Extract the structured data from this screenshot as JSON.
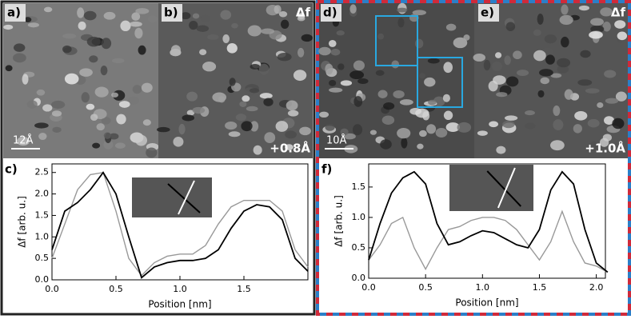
{
  "panels": {
    "a": "a)",
    "b": "b)",
    "b_channel": "Δf",
    "a_scale": "12Å",
    "b_height": "+0.8Å",
    "c": "c)",
    "d": "d)",
    "e": "e)",
    "e_channel": "Δf",
    "d_scale": "10Å",
    "e_height": "+1.0Å",
    "f": "f)"
  },
  "chart_data": [
    {
      "type": "line",
      "xlabel": "Position [nm]",
      "ylabel": "Δf [arb. u.]",
      "x": [
        0,
        0.1,
        0.2,
        0.3,
        0.4,
        0.5,
        0.6,
        0.7,
        0.8,
        0.9,
        1.0,
        1.1,
        1.2,
        1.3,
        1.4,
        1.5,
        1.6,
        1.7,
        1.8,
        1.9,
        2.0
      ],
      "series": [
        {
          "color": "#999999",
          "values": [
            0.5,
            1.3,
            2.1,
            2.45,
            2.5,
            1.6,
            0.5,
            0.1,
            0.4,
            0.55,
            0.6,
            0.6,
            0.8,
            1.3,
            1.7,
            1.85,
            1.85,
            1.85,
            1.6,
            0.7,
            0.3
          ]
        },
        {
          "color": "#000000",
          "values": [
            0.7,
            1.6,
            1.8,
            2.1,
            2.5,
            2.0,
            1.0,
            0.05,
            0.3,
            0.4,
            0.45,
            0.45,
            0.5,
            0.7,
            1.2,
            1.6,
            1.75,
            1.7,
            1.4,
            0.5,
            0.2
          ]
        }
      ],
      "xlim": [
        0,
        2.0
      ],
      "ylim": [
        0,
        2.7
      ],
      "xticks": [
        {
          "value": 0,
          "label": "0.0"
        },
        0.5,
        {
          "value": 1,
          "label": "1.0"
        },
        1.5
      ],
      "yticks": [
        {
          "value": 0,
          "label": "0.0"
        },
        0.5,
        {
          "value": 1,
          "label": "1.0"
        },
        1.5,
        {
          "value": 2,
          "label": "2.0"
        },
        2.5
      ]
    },
    {
      "type": "line",
      "xlabel": "Position [nm]",
      "ylabel": "Δf [arb. u.]",
      "x": [
        0,
        0.1,
        0.2,
        0.3,
        0.4,
        0.5,
        0.6,
        0.7,
        0.8,
        0.9,
        1.0,
        1.1,
        1.2,
        1.3,
        1.4,
        1.5,
        1.6,
        1.7,
        1.8,
        1.9,
        2.0,
        2.1
      ],
      "series": [
        {
          "color": "#999999",
          "values": [
            0.3,
            0.55,
            0.9,
            1.0,
            0.5,
            0.15,
            0.5,
            0.8,
            0.85,
            0.95,
            1.0,
            1.0,
            0.95,
            0.8,
            0.55,
            0.3,
            0.6,
            1.1,
            0.6,
            0.25,
            0.2,
            0.1
          ]
        },
        {
          "color": "#000000",
          "values": [
            0.3,
            0.9,
            1.4,
            1.65,
            1.75,
            1.55,
            0.9,
            0.55,
            0.6,
            0.7,
            0.78,
            0.75,
            0.65,
            0.55,
            0.5,
            0.8,
            1.45,
            1.75,
            1.55,
            0.8,
            0.25,
            0.1
          ]
        }
      ],
      "xlim": [
        0,
        2.08
      ],
      "ylim": [
        0,
        1.88
      ],
      "xticks": [
        {
          "value": 0,
          "label": "0.0"
        },
        0.5,
        {
          "value": 1,
          "label": "1.0"
        },
        1.5,
        {
          "value": 2,
          "label": "2.0"
        }
      ],
      "yticks": [
        {
          "value": 0,
          "label": "0.0"
        },
        0.5,
        {
          "value": 1,
          "label": "1.0"
        },
        1.5
      ]
    }
  ]
}
